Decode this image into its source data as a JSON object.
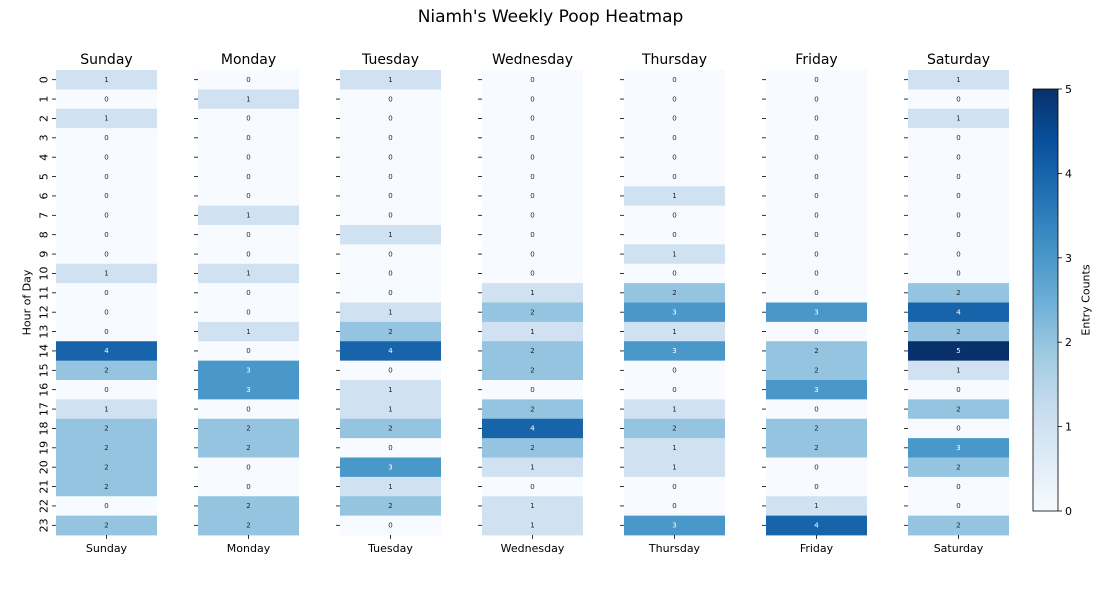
{
  "title": "Niamh's Weekly Poop Heatmap",
  "chart_data": {
    "type": "heatmap",
    "title": "Niamh's Weekly Poop Heatmap",
    "ylabel": "Hour of Day",
    "colorbar_label": "Entry Counts",
    "colormap": "Blues",
    "vmin": 0,
    "vmax": 5,
    "colorbar_ticks": [
      "0",
      "1",
      "2",
      "3",
      "4",
      "5"
    ],
    "hours": [
      "0",
      "1",
      "2",
      "3",
      "4",
      "5",
      "6",
      "7",
      "8",
      "9",
      "10",
      "11",
      "12",
      "13",
      "14",
      "15",
      "16",
      "17",
      "18",
      "19",
      "20",
      "21",
      "22",
      "23"
    ],
    "days": [
      {
        "name": "Sunday",
        "values": [
          1,
          0,
          1,
          0,
          0,
          0,
          0,
          0,
          0,
          0,
          1,
          0,
          0,
          0,
          4,
          2,
          0,
          1,
          2,
          2,
          2,
          2,
          0,
          2
        ]
      },
      {
        "name": "Monday",
        "values": [
          0,
          1,
          0,
          0,
          0,
          0,
          0,
          1,
          0,
          0,
          1,
          0,
          0,
          1,
          0,
          3,
          3,
          0,
          2,
          2,
          0,
          0,
          2,
          2
        ]
      },
      {
        "name": "Tuesday",
        "values": [
          1,
          0,
          0,
          0,
          0,
          0,
          0,
          0,
          1,
          0,
          0,
          0,
          1,
          2,
          4,
          0,
          1,
          1,
          2,
          0,
          3,
          1,
          2,
          0
        ]
      },
      {
        "name": "Wednesday",
        "values": [
          0,
          0,
          0,
          0,
          0,
          0,
          0,
          0,
          0,
          0,
          0,
          1,
          2,
          1,
          2,
          2,
          0,
          2,
          4,
          2,
          1,
          0,
          1,
          1
        ]
      },
      {
        "name": "Thursday",
        "values": [
          0,
          0,
          0,
          0,
          0,
          0,
          1,
          0,
          0,
          1,
          0,
          2,
          3,
          1,
          3,
          0,
          0,
          1,
          2,
          1,
          1,
          0,
          0,
          3
        ]
      },
      {
        "name": "Friday",
        "values": [
          0,
          0,
          0,
          0,
          0,
          0,
          0,
          0,
          0,
          0,
          0,
          0,
          3,
          0,
          2,
          2,
          3,
          0,
          2,
          2,
          0,
          0,
          1,
          4
        ]
      },
      {
        "name": "Saturday",
        "values": [
          1,
          0,
          1,
          0,
          0,
          0,
          0,
          0,
          0,
          0,
          0,
          2,
          4,
          2,
          5,
          1,
          0,
          2,
          0,
          3,
          2,
          0,
          0,
          2
        ]
      }
    ]
  }
}
